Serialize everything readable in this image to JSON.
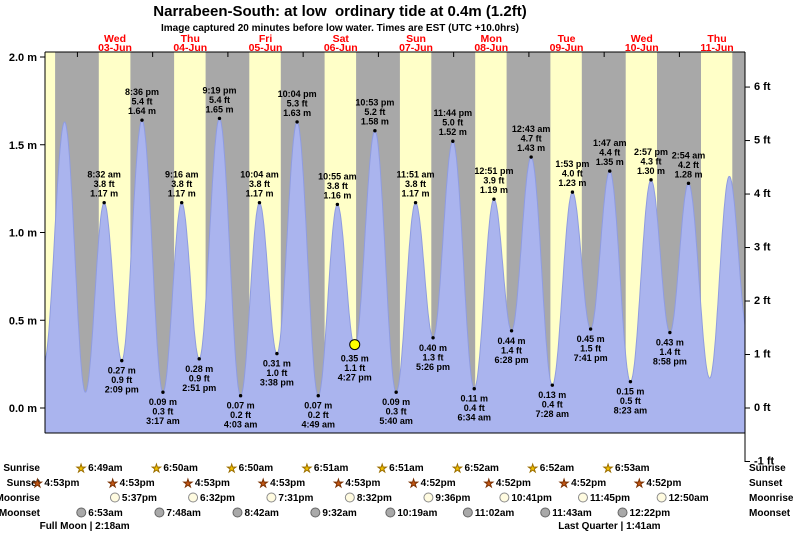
{
  "title": "Narrabeen-South: at low  ordinary tide at 0.4m (1.2ft)",
  "subtitle": "Image captured 20 minutes before low water. Times are EST (UTC +10.0hrs)",
  "colors": {
    "day_band": "#ffffc8",
    "night_band": "#a8a8a8",
    "tide_fill": "#aab4ee",
    "tide_edge": "#8f9ce0",
    "day_label": "#ff0000",
    "current_marker": "#ffff00"
  },
  "y_axis_left": {
    "unit": "m",
    "labels": [
      "2.0 m",
      "1.5 m",
      "1.0 m",
      "0.5 m",
      "0.0 m"
    ]
  },
  "y_axis_right": {
    "unit": "ft",
    "labels": [
      "6 ft",
      "5 ft",
      "4 ft",
      "3 ft",
      "2 ft",
      "1 ft",
      "0 ft",
      "-1 ft"
    ]
  },
  "days": [
    {
      "dow": "Wed",
      "date": "03-Jun"
    },
    {
      "dow": "Thu",
      "date": "04-Jun"
    },
    {
      "dow": "Fri",
      "date": "05-Jun"
    },
    {
      "dow": "Sat",
      "date": "06-Jun"
    },
    {
      "dow": "Sun",
      "date": "07-Jun"
    },
    {
      "dow": "Mon",
      "date": "08-Jun"
    },
    {
      "dow": "Tue",
      "date": "09-Jun"
    },
    {
      "dow": "Wed",
      "date": "10-Jun"
    },
    {
      "dow": "Thu",
      "date": "11-Jun"
    }
  ],
  "chart_data": {
    "type": "area",
    "ylim_m": [
      0,
      2
    ],
    "ylim_ft": [
      -1,
      6
    ],
    "tide_points": [
      {
        "day": 0,
        "time": "8:32 am",
        "height_m": 1.17,
        "kind": "high",
        "label": [
          "8:32 am",
          "3.8 ft",
          "1.17 m"
        ]
      },
      {
        "day": 0,
        "time": "2:09 pm",
        "height_m": 0.27,
        "kind": "low",
        "label": [
          "0.27 m",
          "0.9 ft",
          "2:09 pm"
        ]
      },
      {
        "day": 0,
        "time": "8:36 pm",
        "height_m": 1.64,
        "kind": "high",
        "label": [
          "8:36 pm",
          "5.4 ft",
          "1.64 m"
        ]
      },
      {
        "day": 1,
        "time": "3:17 am",
        "height_m": 0.09,
        "kind": "low",
        "label": [
          "0.09 m",
          "0.3 ft",
          "3:17 am"
        ]
      },
      {
        "day": 1,
        "time": "9:16 am",
        "height_m": 1.17,
        "kind": "high",
        "label": [
          "9:16 am",
          "3.8 ft",
          "1.17 m"
        ]
      },
      {
        "day": 1,
        "time": "2:51 pm",
        "height_m": 0.28,
        "kind": "low",
        "label": [
          "0.28 m",
          "0.9 ft",
          "2:51 pm"
        ]
      },
      {
        "day": 1,
        "time": "9:19 pm",
        "height_m": 1.65,
        "kind": "high",
        "label": [
          "9:19 pm",
          "5.4 ft",
          "1.65 m"
        ]
      },
      {
        "day": 2,
        "time": "4:03 am",
        "height_m": 0.07,
        "kind": "low",
        "label": [
          "0.07 m",
          "0.2 ft",
          "4:03 am"
        ]
      },
      {
        "day": 2,
        "time": "10:04 am",
        "height_m": 1.17,
        "kind": "high",
        "label": [
          "10:04 am",
          "3.8 ft",
          "1.17 m"
        ]
      },
      {
        "day": 2,
        "time": "3:38 pm",
        "height_m": 0.31,
        "kind": "low",
        "label": [
          "0.31 m",
          "1.0 ft",
          "3:38 pm"
        ]
      },
      {
        "day": 2,
        "time": "10:04 pm",
        "height_m": 1.63,
        "kind": "high",
        "label": [
          "10:04 pm",
          "5.3 ft",
          "1.63 m"
        ]
      },
      {
        "day": 3,
        "time": "4:49 am",
        "height_m": 0.07,
        "kind": "low",
        "label": [
          "0.07 m",
          "0.2 ft",
          "4:49 am"
        ]
      },
      {
        "day": 3,
        "time": "10:55 am",
        "height_m": 1.16,
        "kind": "high",
        "label": [
          "10:55 am",
          "3.8 ft",
          "1.16 m"
        ]
      },
      {
        "day": 3,
        "time": "4:27 pm",
        "height_m": 0.35,
        "kind": "low",
        "current": true,
        "label": [
          "0.35 m",
          "1.1 ft",
          "4:27 pm"
        ]
      },
      {
        "day": 3,
        "time": "10:53 pm",
        "height_m": 1.58,
        "kind": "high",
        "label": [
          "10:53 pm",
          "5.2 ft",
          "1.58 m"
        ]
      },
      {
        "day": 4,
        "time": "5:40 am",
        "height_m": 0.09,
        "kind": "low",
        "label": [
          "0.09 m",
          "0.3 ft",
          "5:40 am"
        ]
      },
      {
        "day": 4,
        "time": "11:51 am",
        "height_m": 1.17,
        "kind": "high",
        "label": [
          "11:51 am",
          "3.8 ft",
          "1.17 m"
        ]
      },
      {
        "day": 4,
        "time": "5:26 pm",
        "height_m": 0.4,
        "kind": "low",
        "label": [
          "0.40 m",
          "1.3 ft",
          "5:26 pm"
        ]
      },
      {
        "day": 4,
        "time": "11:44 pm",
        "height_m": 1.52,
        "kind": "high",
        "label": [
          "11:44 pm",
          "5.0 ft",
          "1.52 m"
        ]
      },
      {
        "day": 5,
        "time": "6:34 am",
        "height_m": 0.11,
        "kind": "low",
        "label": [
          "0.11 m",
          "0.4 ft",
          "6:34 am"
        ]
      },
      {
        "day": 5,
        "time": "12:51 pm",
        "height_m": 1.19,
        "kind": "high",
        "label": [
          "12:51 pm",
          "3.9 ft",
          "1.19 m"
        ]
      },
      {
        "day": 5,
        "time": "6:28 pm",
        "height_m": 0.44,
        "kind": "low",
        "label": [
          "0.44 m",
          "1.4 ft",
          "6:28 pm"
        ]
      },
      {
        "day": 6,
        "time": "12:43 am",
        "height_m": 1.43,
        "kind": "high",
        "label": [
          "12:43 am",
          "4.7 ft",
          "1.43 m"
        ]
      },
      {
        "day": 6,
        "time": "7:28 am",
        "height_m": 0.13,
        "kind": "low",
        "label": [
          "0.13 m",
          "0.4 ft",
          "7:28 am"
        ]
      },
      {
        "day": 6,
        "time": "1:53 pm",
        "height_m": 1.23,
        "kind": "high",
        "label": [
          "1:53 pm",
          "4.0 ft",
          "1.23 m"
        ]
      },
      {
        "day": 6,
        "time": "7:41 pm",
        "height_m": 0.45,
        "kind": "low",
        "label": [
          "0.45 m",
          "1.5 ft",
          "7:41 pm"
        ]
      },
      {
        "day": 7,
        "time": "1:47 am",
        "height_m": 1.35,
        "kind": "high",
        "label": [
          "1:47 am",
          "4.4 ft",
          "1.35 m"
        ]
      },
      {
        "day": 7,
        "time": "8:23 am",
        "height_m": 0.15,
        "kind": "low",
        "label": [
          "0.15 m",
          "0.5 ft",
          "8:23 am"
        ]
      },
      {
        "day": 7,
        "time": "2:57 pm",
        "height_m": 1.3,
        "kind": "high",
        "label": [
          "2:57 pm",
          "4.3 ft",
          "1.30 m"
        ]
      },
      {
        "day": 7,
        "time": "8:58 pm",
        "height_m": 0.43,
        "kind": "low",
        "label": [
          "0.43 m",
          "1.4 ft",
          "8:58 pm"
        ]
      },
      {
        "day": 8,
        "time": "2:54 am",
        "height_m": 1.28,
        "kind": "high",
        "label": [
          "2:54 am",
          "4.2 ft",
          "1.28 m"
        ]
      }
    ],
    "edge_points": [
      {
        "day": -1,
        "time": "1:20 pm",
        "height_m": 0.26
      },
      {
        "day": -1,
        "time": "7:55 pm",
        "height_m": 1.63
      },
      {
        "day": 0,
        "time": "2:33 am",
        "height_m": 0.09
      },
      {
        "day": 8,
        "time": "9:40 am",
        "height_m": 0.17
      },
      {
        "day": 8,
        "time": "3:55 pm",
        "height_m": 1.32
      },
      {
        "day": 8,
        "time": "9:50 pm",
        "height_m": 0.42
      }
    ]
  },
  "astro": {
    "rows": [
      {
        "name": "Sunrise",
        "icon": "star",
        "icon_color": "#f2c200",
        "icon_stroke": "#9a6d00",
        "entries": [
          {
            "day": 0,
            "time": "6:49am"
          },
          {
            "day": 1,
            "time": "6:50am"
          },
          {
            "day": 2,
            "time": "6:50am"
          },
          {
            "day": 3,
            "time": "6:51am"
          },
          {
            "day": 4,
            "time": "6:51am"
          },
          {
            "day": 5,
            "time": "6:52am"
          },
          {
            "day": 6,
            "time": "6:52am"
          },
          {
            "day": 7,
            "time": "6:53am"
          }
        ]
      },
      {
        "name": "Sunset",
        "icon": "star",
        "icon_color": "#c35817",
        "icon_stroke": "#7a3000",
        "entries": [
          {
            "day": -1,
            "time": "4:53pm"
          },
          {
            "day": 0,
            "time": "4:53pm"
          },
          {
            "day": 1,
            "time": "4:53pm"
          },
          {
            "day": 2,
            "time": "4:53pm"
          },
          {
            "day": 3,
            "time": "4:53pm"
          },
          {
            "day": 4,
            "time": "4:52pm"
          },
          {
            "day": 5,
            "time": "4:52pm"
          },
          {
            "day": 6,
            "time": "4:52pm"
          },
          {
            "day": 7,
            "time": "4:52pm"
          }
        ]
      },
      {
        "name": "Moonrise",
        "icon": "circle",
        "icon_color": "#fffbe0",
        "icon_stroke": "#8a8a8a",
        "entries": [
          {
            "day": 0,
            "time": "5:37pm"
          },
          {
            "day": 1,
            "time": "6:32pm"
          },
          {
            "day": 2,
            "time": "7:31pm"
          },
          {
            "day": 3,
            "time": "8:32pm"
          },
          {
            "day": 4,
            "time": "9:36pm"
          },
          {
            "day": 5,
            "time": "10:41pm"
          },
          {
            "day": 6,
            "time": "11:45pm"
          },
          {
            "day": 8,
            "time": "12:50am"
          }
        ]
      },
      {
        "name": "Moonset",
        "icon": "circle",
        "icon_color": "#a9a9a9",
        "icon_stroke": "#666666",
        "entries": [
          {
            "day": 0,
            "time": "6:53am"
          },
          {
            "day": 1,
            "time": "7:48am"
          },
          {
            "day": 2,
            "time": "8:42am"
          },
          {
            "day": 3,
            "time": "9:32am"
          },
          {
            "day": 4,
            "time": "10:19am"
          },
          {
            "day": 5,
            "time": "11:02am"
          },
          {
            "day": 6,
            "time": "11:43am"
          },
          {
            "day": 7,
            "time": "12:22pm"
          }
        ]
      }
    ],
    "phases": [
      {
        "text": "Full Moon | 2:18am",
        "day": 0,
        "time": "2:18am"
      },
      {
        "text": "Last Quarter | 1:41am",
        "day": 7,
        "time": "1:41am"
      }
    ]
  }
}
